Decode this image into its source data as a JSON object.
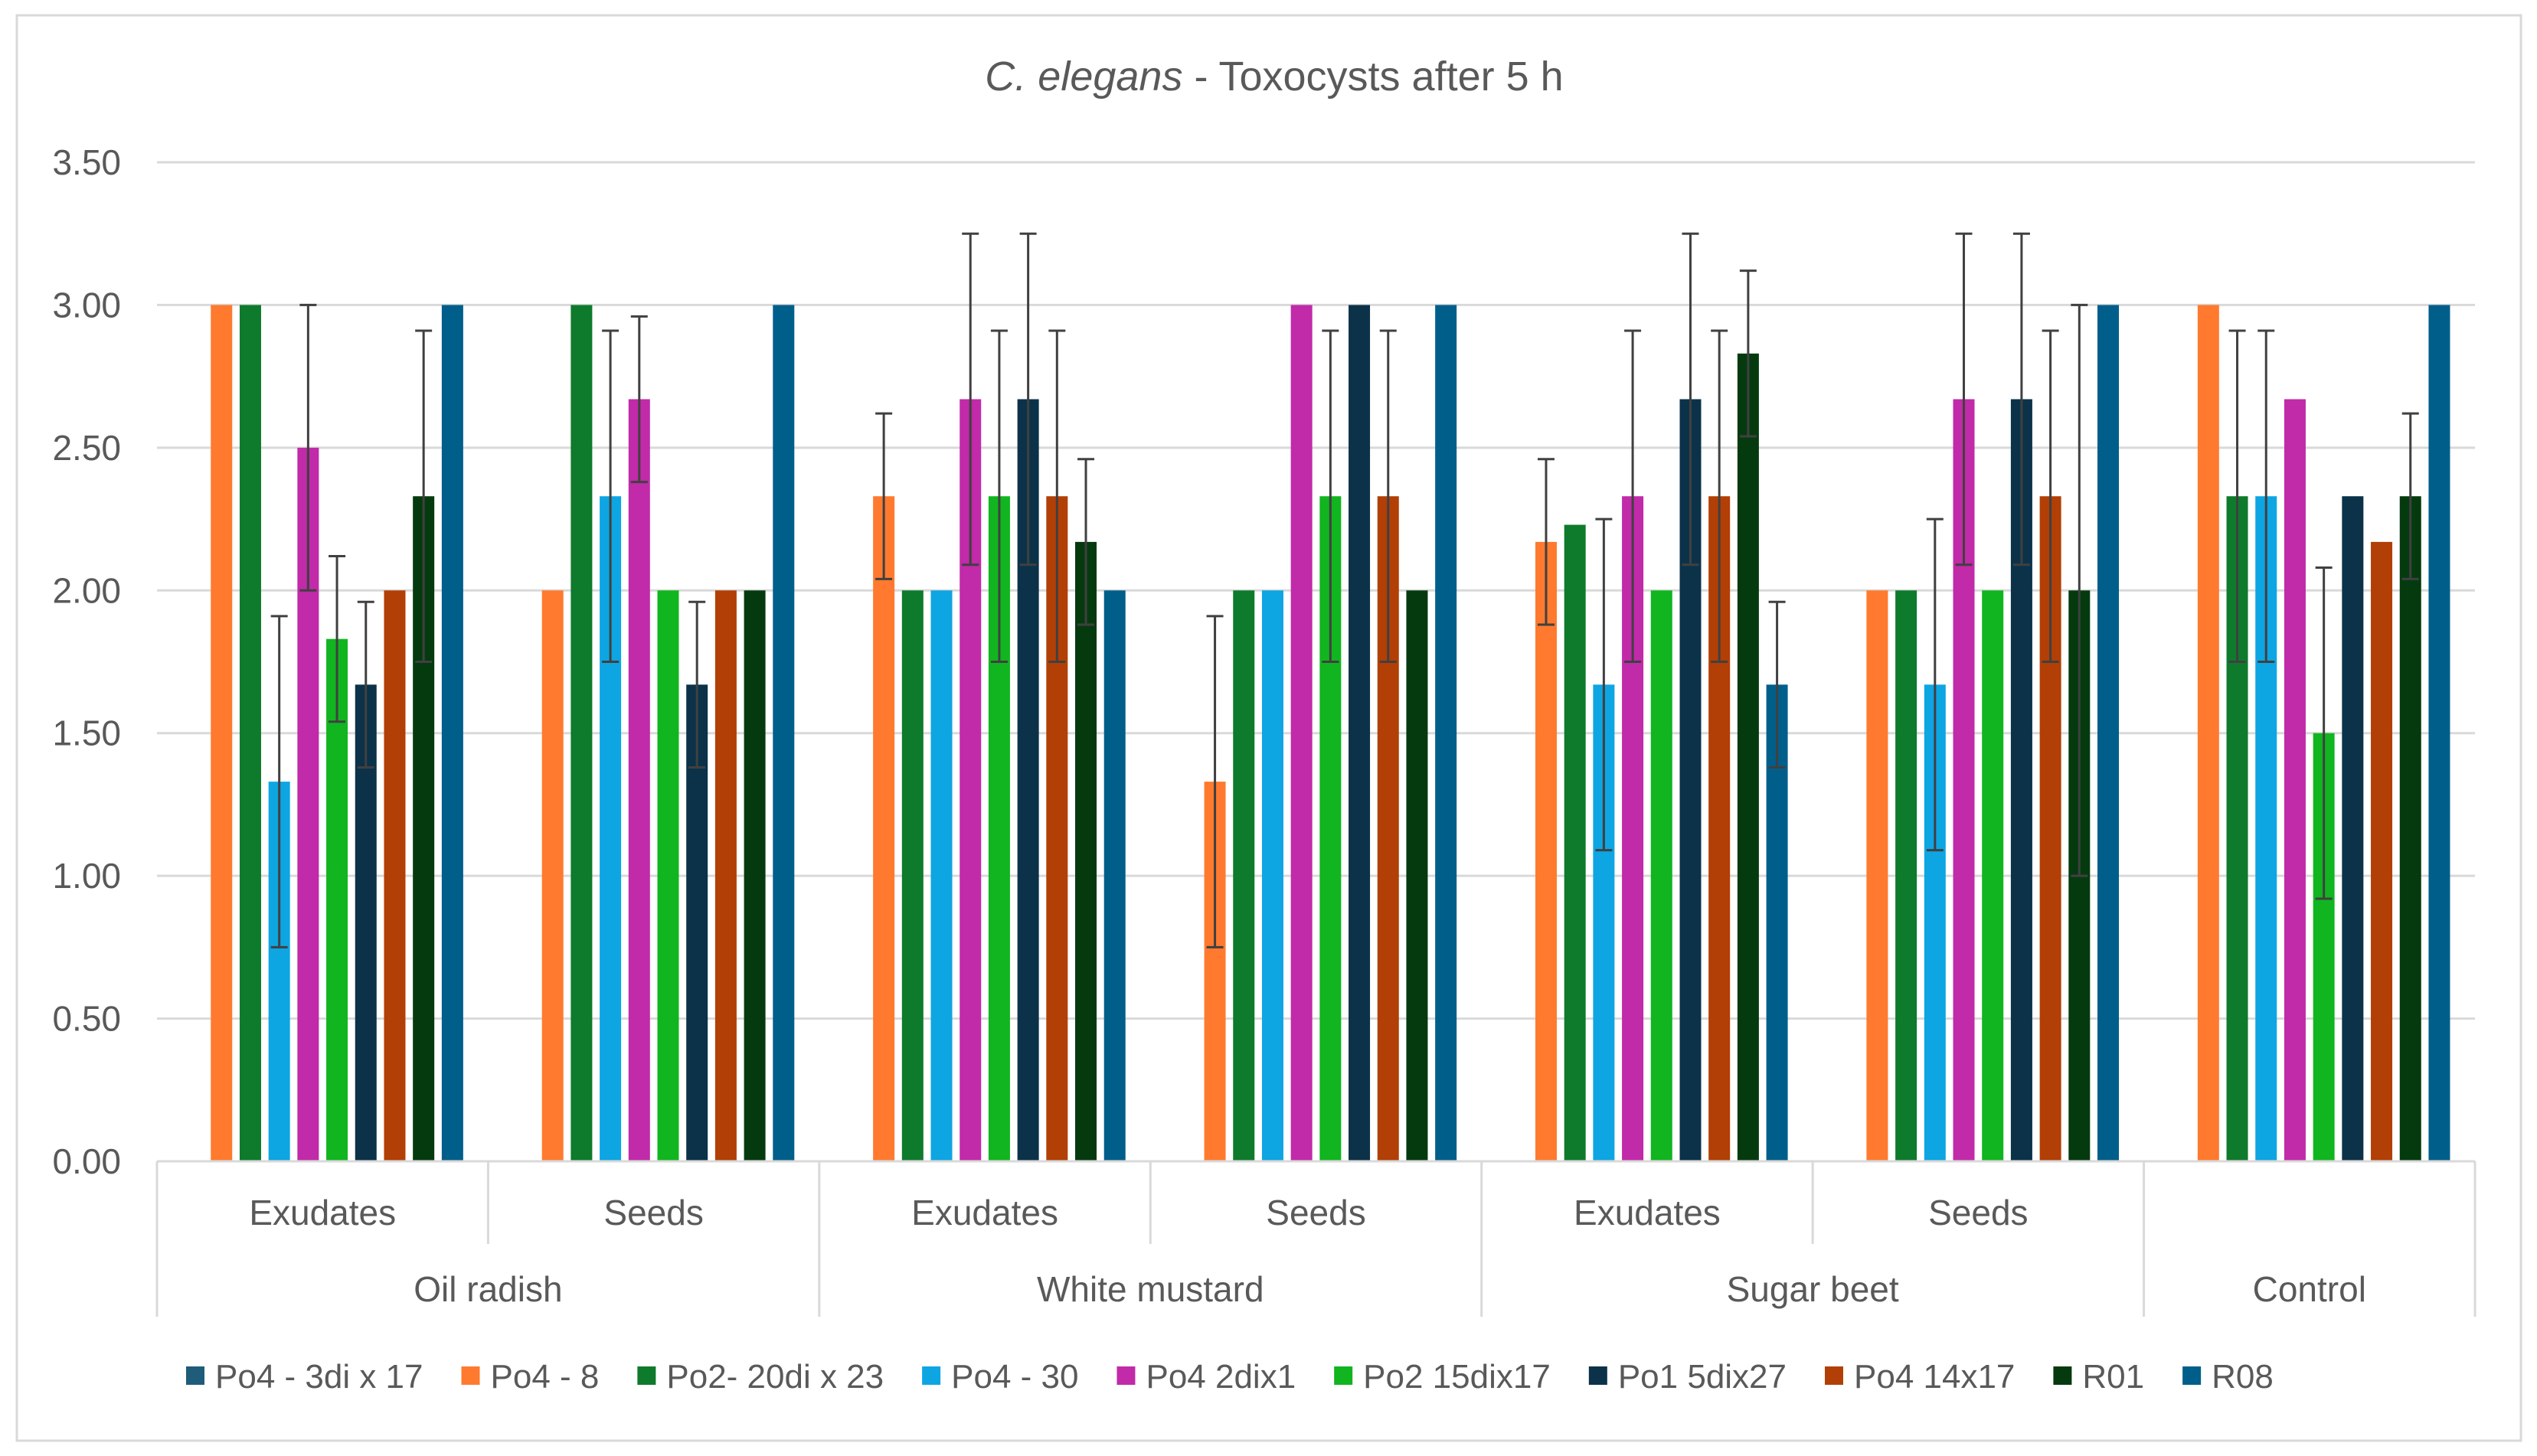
{
  "chart_data": {
    "type": "bar",
    "title_italic": "C. elegans",
    "title_rest": " - Toxocysts after 5 h",
    "xlabel": "",
    "ylabel": "",
    "ylim": [
      0,
      3.5
    ],
    "ytick_labels": [
      "0.00",
      "0.50",
      "1.00",
      "1.50",
      "2.00",
      "2.50",
      "3.00",
      "3.50"
    ],
    "grid": true,
    "legend_position": "bottom",
    "categories": [
      "Oil radish Exudates",
      "Oil radish Seeds",
      "White mustard Exudates",
      "White mustard Seeds",
      "Sugar beet Exudates",
      "Sugar beet Seeds",
      "Control"
    ],
    "subcategory_labels": [
      "Exudates",
      "Seeds",
      "Exudates",
      "Seeds",
      "Exudates",
      "Seeds",
      ""
    ],
    "groups": [
      {
        "label": "Oil radish",
        "span": 2
      },
      {
        "label": "White mustard",
        "span": 2
      },
      {
        "label": "Sugar beet",
        "span": 2
      },
      {
        "label": "Control",
        "span": 1
      }
    ],
    "series": [
      {
        "name": "Po4 - 3di x 17",
        "color": "#1F5C7A",
        "values": [
          null,
          null,
          null,
          null,
          null,
          null,
          null
        ],
        "errors": [
          null,
          null,
          null,
          null,
          null,
          null,
          null
        ]
      },
      {
        "name": "Po4 - 8",
        "color": "#FF7A2E",
        "values": [
          3.0,
          2.0,
          2.33,
          1.33,
          2.17,
          2.0,
          3.0
        ],
        "errors": [
          null,
          null,
          0.29,
          0.58,
          0.29,
          null,
          null
        ]
      },
      {
        "name": "Po2- 20di x 23",
        "color": "#0E7A2C",
        "values": [
          3.0,
          3.0,
          2.0,
          2.0,
          2.23,
          2.0,
          2.33
        ],
        "errors": [
          null,
          null,
          null,
          null,
          null,
          null,
          0.58
        ]
      },
      {
        "name": "Po4 - 30",
        "color": "#0EA5E3",
        "values": [
          1.33,
          2.33,
          2.0,
          2.0,
          1.67,
          1.67,
          2.33
        ],
        "errors": [
          0.58,
          0.58,
          null,
          null,
          0.58,
          0.58,
          0.58
        ]
      },
      {
        "name": "Po4 2dix1",
        "color": "#C12AA8",
        "values": [
          2.5,
          2.67,
          2.67,
          3.0,
          2.33,
          2.67,
          2.67
        ],
        "errors": [
          0.5,
          0.29,
          0.58,
          null,
          0.58,
          0.58,
          null
        ]
      },
      {
        "name": "Po2 15dix17",
        "color": "#11B51F",
        "values": [
          1.83,
          2.0,
          2.33,
          2.33,
          2.0,
          2.0,
          1.5
        ],
        "errors": [
          0.29,
          null,
          0.58,
          0.58,
          null,
          null,
          0.58
        ]
      },
      {
        "name": "Po1 5dix27",
        "color": "#0B3249",
        "values": [
          1.67,
          1.67,
          2.67,
          3.0,
          2.67,
          2.67,
          2.33
        ],
        "errors": [
          0.29,
          0.29,
          0.58,
          null,
          0.58,
          0.58,
          null
        ]
      },
      {
        "name": "Po4 14x17",
        "color": "#B23F05",
        "values": [
          2.0,
          2.0,
          2.33,
          2.33,
          2.33,
          2.33,
          2.17
        ],
        "errors": [
          null,
          null,
          0.58,
          0.58,
          0.58,
          0.58,
          null
        ]
      },
      {
        "name": "R01",
        "color": "#053A0F",
        "values": [
          2.33,
          2.0,
          2.17,
          2.0,
          2.83,
          2.0,
          2.33
        ],
        "errors": [
          0.58,
          null,
          0.29,
          null,
          0.29,
          1.0,
          0.29
        ]
      },
      {
        "name": "R08",
        "color": "#005E8A",
        "values": [
          3.0,
          3.0,
          2.0,
          3.0,
          1.67,
          3.0,
          3.0
        ],
        "errors": [
          null,
          null,
          null,
          null,
          0.29,
          null,
          null
        ]
      }
    ]
  }
}
